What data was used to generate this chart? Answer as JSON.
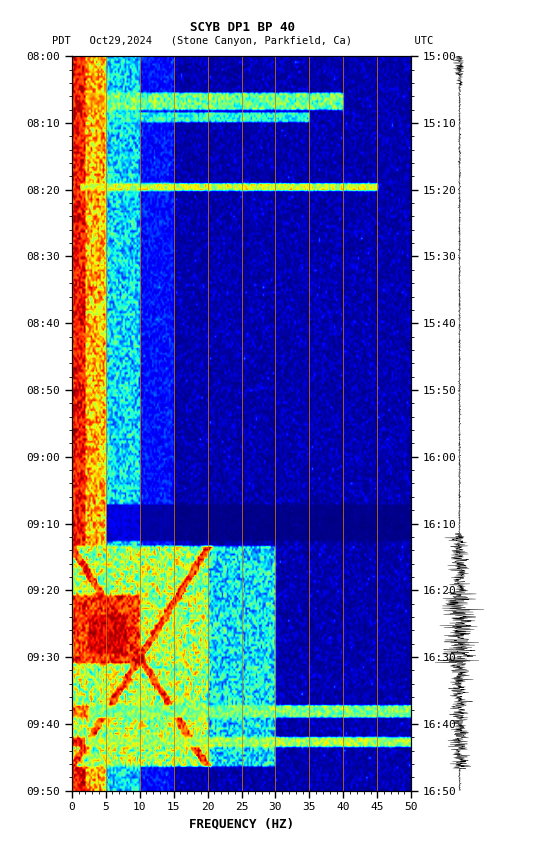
{
  "title_line1": "SCYB DP1 BP 40",
  "title_line2": "PDT   Oct29,2024   (Stone Canyon, Parkfield, Ca)          UTC",
  "xlabel": "FREQUENCY (HZ)",
  "freq_min": 0,
  "freq_max": 50,
  "pdt_ticks": [
    "08:00",
    "08:10",
    "08:20",
    "08:30",
    "08:40",
    "08:50",
    "09:00",
    "09:10",
    "09:20",
    "09:30",
    "09:40",
    "09:50"
  ],
  "utc_ticks": [
    "15:00",
    "15:10",
    "15:20",
    "15:30",
    "15:40",
    "15:50",
    "16:00",
    "16:10",
    "16:20",
    "16:30",
    "16:40",
    "16:50"
  ],
  "freq_ticks": [
    0,
    5,
    10,
    15,
    20,
    25,
    30,
    35,
    40,
    45,
    50
  ],
  "vertical_lines_freq": [
    5,
    10,
    15,
    20,
    25,
    30,
    35,
    40,
    45
  ],
  "bg_color": "#ffffff",
  "spectrogram_cmap": "jet",
  "fig_width": 5.52,
  "fig_height": 8.64,
  "dpi": 100
}
